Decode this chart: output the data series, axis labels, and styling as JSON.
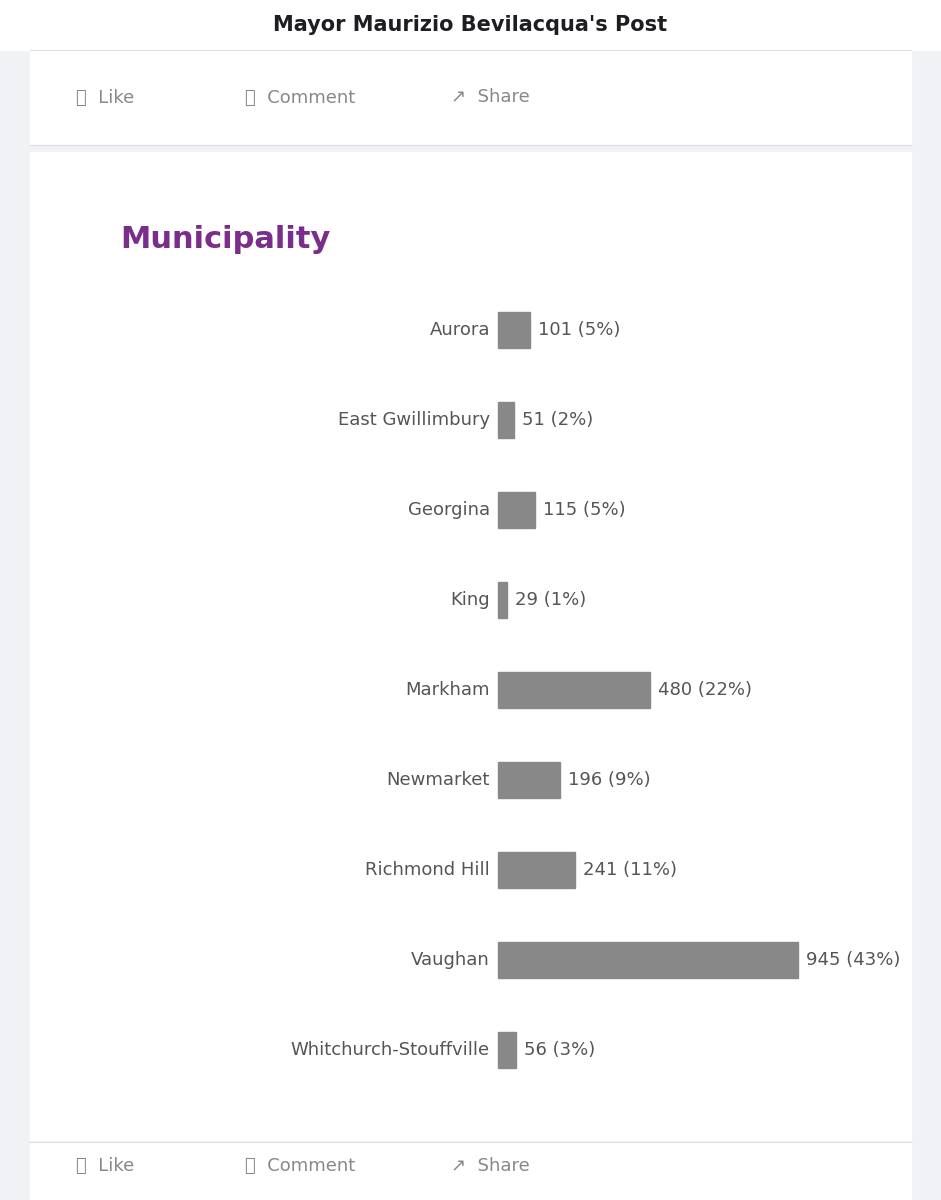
{
  "page_title": "Mayor Maurizio Bevilacqua's Post",
  "chart_title": "Municipality",
  "chart_title_color": "#7B2D8B",
  "categories": [
    "Aurora",
    "East Gwillimbury",
    "Georgina",
    "King",
    "Markham",
    "Newmarket",
    "Richmond Hill",
    "Vaughan",
    "Whitchurch-Stouffville"
  ],
  "values": [
    101,
    51,
    115,
    29,
    480,
    196,
    241,
    945,
    56
  ],
  "percentages": [
    "5%",
    "2%",
    "5%",
    "1%",
    "22%",
    "9%",
    "11%",
    "43%",
    "3%"
  ],
  "bar_color": "#888888",
  "bg_color": "#f0f2f5",
  "card_color": "#ffffff",
  "text_color": "#1c1e21",
  "label_color": "#555555",
  "button_color": "#888888",
  "separator_color": "#dddddd",
  "title_fontsize": 15,
  "chart_title_fontsize": 22,
  "label_fontsize": 13,
  "value_fontsize": 13,
  "button_fontsize": 13,
  "max_value": 945
}
